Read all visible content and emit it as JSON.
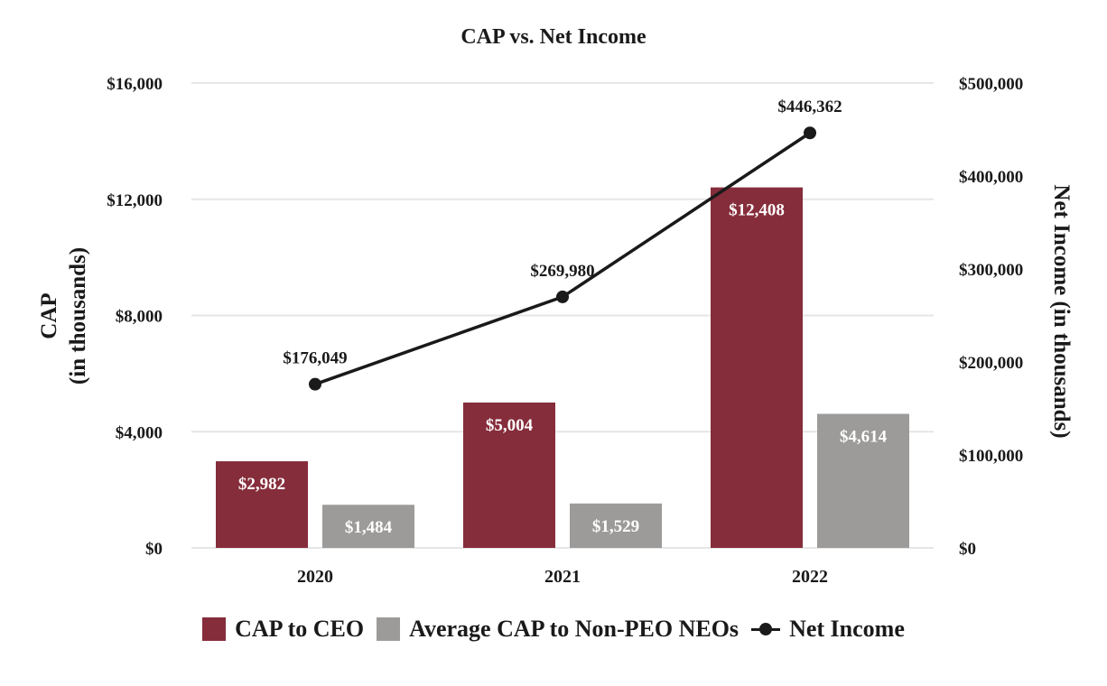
{
  "chart_data": {
    "type": "bar",
    "title": "CAP vs. Net Income",
    "categories": [
      "2020",
      "2021",
      "2022"
    ],
    "series": [
      {
        "name": "CAP to CEO",
        "type": "bar",
        "axis": "left",
        "color": "#862d3b",
        "values": [
          2982,
          5004,
          12408
        ],
        "labels": [
          "$2,982",
          "$5,004",
          "$12,408"
        ]
      },
      {
        "name": "Average CAP to Non-PEO NEOs",
        "type": "bar",
        "axis": "left",
        "color": "#9c9b99",
        "values": [
          1484,
          1529,
          4614
        ],
        "labels": [
          "$1,484",
          "$1,529",
          "$4,614"
        ]
      },
      {
        "name": "Net Income",
        "type": "line",
        "axis": "right",
        "color": "#1a1a1a",
        "values": [
          176049,
          269980,
          446362
        ],
        "labels": [
          "$176,049",
          "$269,980",
          "$446,362"
        ]
      }
    ],
    "ylabel_left": [
      "CAP",
      "(in thousands)"
    ],
    "ylabel_right": "Net Income (in thousands)",
    "ylim_left": [
      0,
      16000
    ],
    "ylim_right": [
      0,
      500000
    ],
    "yticks_left": [
      "$0",
      "$4,000",
      "$8,000",
      "$12,000",
      "$16,000"
    ],
    "yticks_right": [
      "$0",
      "$100,000",
      "$200,000",
      "$300,000",
      "$400,000",
      "$500,000"
    ],
    "yticks_left_values": [
      0,
      4000,
      8000,
      12000,
      16000
    ],
    "yticks_right_values": [
      0,
      100000,
      200000,
      300000,
      400000,
      500000
    ],
    "grid": true,
    "legend_position": "bottom-center"
  }
}
